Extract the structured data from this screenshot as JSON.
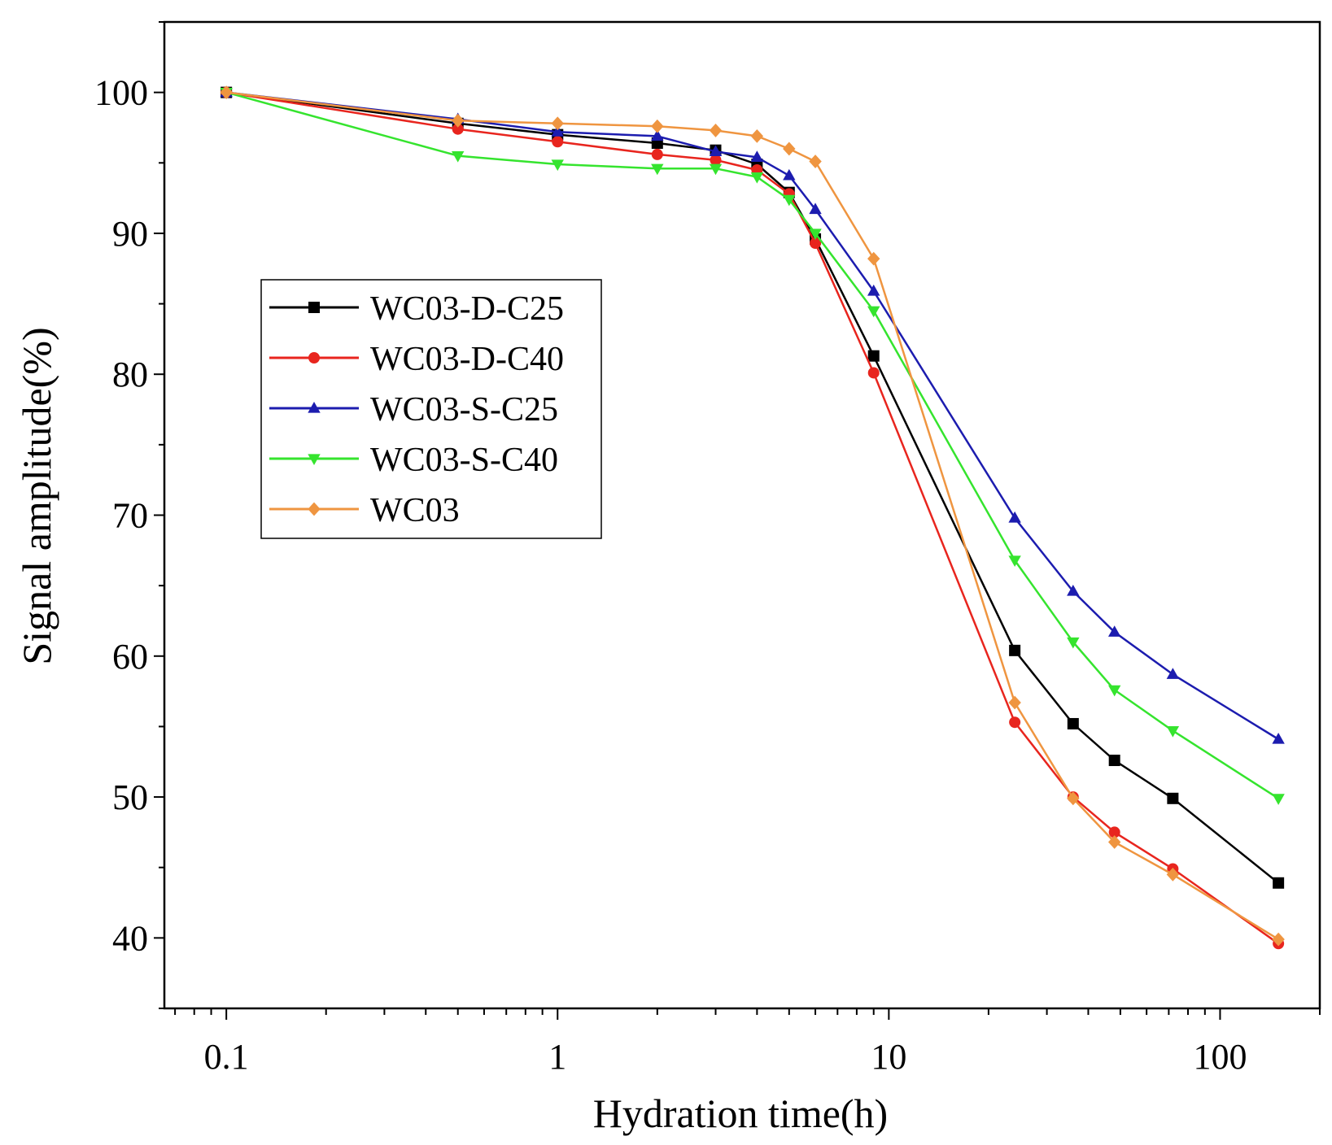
{
  "chart_data": {
    "type": "line",
    "title": "",
    "xlabel": "Hydration time(h)",
    "ylabel": "Signal amplitude(%)",
    "xscale": "log",
    "xlim": [
      0.065,
      200
    ],
    "ylim": [
      35,
      105
    ],
    "xticks": [
      0.1,
      1,
      10,
      100
    ],
    "xtick_labels": [
      "0.1",
      "1",
      "10",
      "100"
    ],
    "yticks": [
      40,
      50,
      60,
      70,
      80,
      90,
      100
    ],
    "ytick_labels": [
      "40",
      "50",
      "60",
      "70",
      "80",
      "90",
      "100"
    ],
    "grid": false,
    "legend_position": "upper-left",
    "series": [
      {
        "name": "WC03-D-C25",
        "color": "#000000",
        "marker": "square",
        "x": [
          0.1,
          0.5,
          1,
          2,
          3,
          4,
          5,
          6,
          9,
          24,
          36,
          48,
          72,
          150
        ],
        "y": [
          100,
          97.8,
          97.0,
          96.4,
          95.9,
          94.9,
          92.9,
          89.6,
          81.3,
          60.4,
          55.2,
          52.6,
          49.9,
          43.9
        ]
      },
      {
        "name": "WC03-D-C40",
        "color": "#e8251e",
        "marker": "circle",
        "x": [
          0.1,
          0.5,
          1,
          2,
          3,
          4,
          5,
          6,
          9,
          24,
          36,
          48,
          72,
          150
        ],
        "y": [
          100,
          97.4,
          96.5,
          95.6,
          95.2,
          94.5,
          92.8,
          89.3,
          80.1,
          55.3,
          50.0,
          47.5,
          44.9,
          39.6
        ]
      },
      {
        "name": "WC03-S-C25",
        "color": "#1c1caf",
        "marker": "triangle-up",
        "x": [
          0.1,
          0.5,
          1,
          2,
          3,
          4,
          5,
          6,
          9,
          24,
          36,
          48,
          72,
          150
        ],
        "y": [
          100,
          98.1,
          97.2,
          96.9,
          95.8,
          95.4,
          94.1,
          91.7,
          85.9,
          69.8,
          64.6,
          61.7,
          58.7,
          54.1
        ]
      },
      {
        "name": "WC03-S-C40",
        "color": "#35e42e",
        "marker": "triangle-down",
        "x": [
          0.1,
          0.5,
          1,
          2,
          3,
          4,
          5,
          6,
          9,
          24,
          36,
          48,
          72,
          150
        ],
        "y": [
          100,
          95.5,
          94.9,
          94.6,
          94.6,
          94.0,
          92.4,
          90.0,
          84.5,
          66.8,
          61.0,
          57.6,
          54.7,
          49.9
        ]
      },
      {
        "name": "WC03",
        "color": "#ef9540",
        "marker": "diamond",
        "x": [
          0.1,
          0.5,
          1,
          2,
          3,
          4,
          5,
          6,
          9,
          24,
          36,
          48,
          72,
          150
        ],
        "y": [
          100,
          98.0,
          97.8,
          97.6,
          97.3,
          96.9,
          96.0,
          95.1,
          88.2,
          56.7,
          49.9,
          46.8,
          44.5,
          39.9
        ]
      }
    ]
  }
}
